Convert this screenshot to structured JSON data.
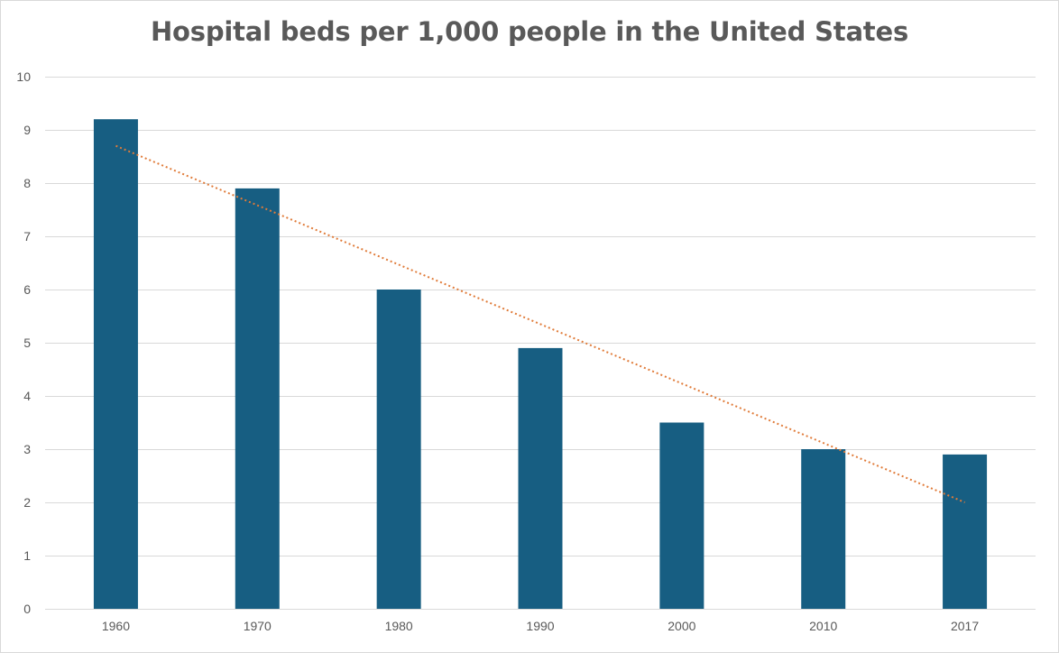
{
  "chart_data": {
    "type": "bar",
    "title": "Hospital beds per 1,000 people in the United States",
    "categories": [
      "1960",
      "1970",
      "1980",
      "1990",
      "2000",
      "2010",
      "2017"
    ],
    "values": [
      9.2,
      7.9,
      6.0,
      4.9,
      3.5,
      3.0,
      2.9
    ],
    "ylim": [
      0,
      10
    ],
    "yticks": [
      "0",
      "1",
      "2",
      "3",
      "4",
      "5",
      "6",
      "7",
      "8",
      "9",
      "10"
    ],
    "grid": true,
    "bar_color": "#175e82",
    "trendline": {
      "type": "linear",
      "style": "dotted",
      "color": "#e07b39",
      "start_value": 8.7,
      "end_value": 2.0
    }
  }
}
